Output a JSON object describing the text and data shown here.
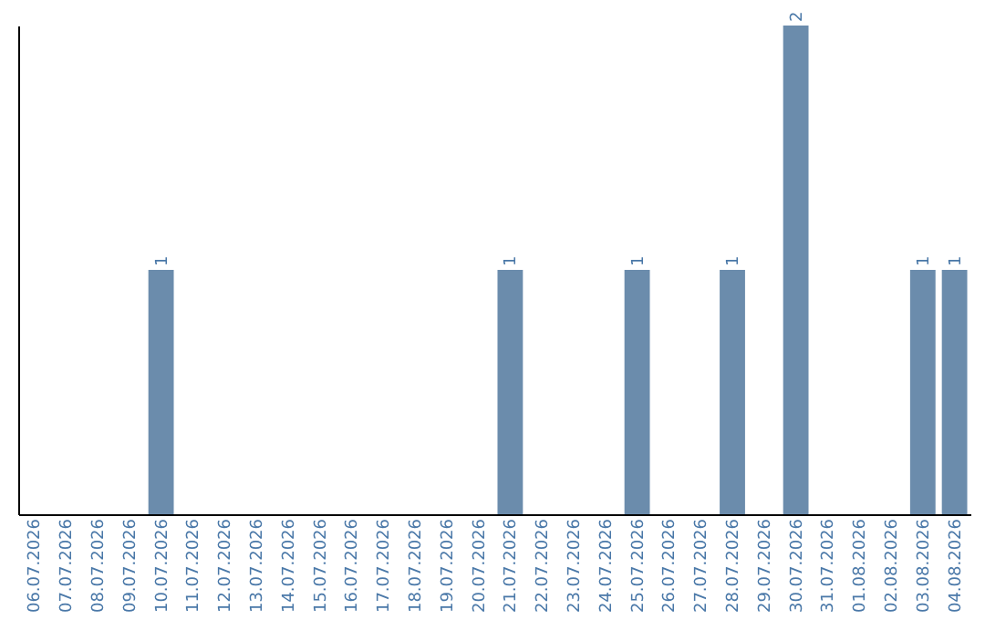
{
  "chart_data": {
    "type": "bar",
    "categories": [
      "06.07.2026",
      "07.07.2026",
      "08.07.2026",
      "09.07.2026",
      "10.07.2026",
      "11.07.2026",
      "12.07.2026",
      "13.07.2026",
      "14.07.2026",
      "15.07.2026",
      "16.07.2026",
      "17.07.2026",
      "18.07.2026",
      "19.07.2026",
      "20.07.2026",
      "21.07.2026",
      "22.07.2026",
      "23.07.2026",
      "24.07.2026",
      "25.07.2026",
      "26.07.2026",
      "27.07.2026",
      "28.07.2026",
      "29.07.2026",
      "30.07.2026",
      "31.07.2026",
      "01.08.2026",
      "02.08.2026",
      "03.08.2026",
      "04.08.2026"
    ],
    "values": [
      0,
      0,
      0,
      0,
      1,
      0,
      0,
      0,
      0,
      0,
      0,
      0,
      0,
      0,
      0,
      1,
      0,
      0,
      0,
      1,
      0,
      0,
      1,
      0,
      2,
      0,
      0,
      0,
      1,
      1
    ],
    "value_labels": [
      null,
      null,
      null,
      null,
      "1",
      null,
      null,
      null,
      null,
      null,
      null,
      null,
      null,
      null,
      null,
      "1",
      null,
      null,
      null,
      "1",
      null,
      null,
      "1",
      null,
      "2",
      null,
      null,
      null,
      "1",
      "1"
    ],
    "color": "#6b8cac",
    "grid": false,
    "tick_labels": "x"
  }
}
